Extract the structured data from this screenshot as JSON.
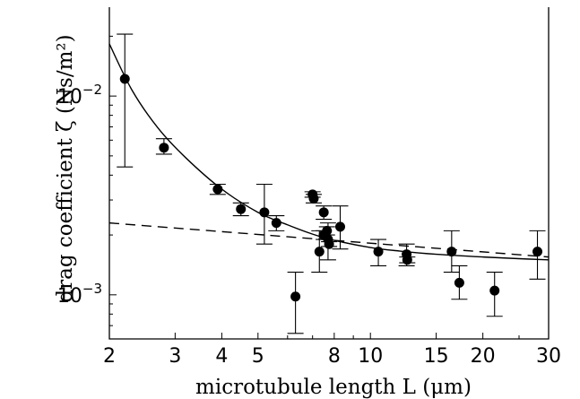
{
  "chart_data": {
    "type": "scatter",
    "x_scale": "log",
    "y_scale": "log",
    "xlabel": "microtubule length L (μm)",
    "ylabel": "drag coefficient ζ (Ns/m²)",
    "xlim": [
      2,
      30
    ],
    "ylim": [
      0.0006,
      0.028
    ],
    "x_ticks": [
      2,
      3,
      4,
      5,
      8,
      10,
      15,
      20,
      30
    ],
    "x_tick_labels": [
      "2",
      "3",
      "4",
      "5",
      "8",
      "10",
      "15",
      "20",
      "30"
    ],
    "y_ticks": [
      0.001,
      0.01
    ],
    "y_tick_labels": [
      {
        "base": "10",
        "exp": "−3"
      },
      {
        "base": "10",
        "exp": "−2"
      }
    ],
    "grid": false,
    "points": [
      {
        "x": 2.2,
        "y": 0.0122,
        "lo": 0.0044,
        "hi": 0.0205
      },
      {
        "x": 2.8,
        "y": 0.0055,
        "lo": 0.0051,
        "hi": 0.0061
      },
      {
        "x": 3.9,
        "y": 0.0034,
        "lo": 0.0032,
        "hi": 0.0036
      },
      {
        "x": 4.5,
        "y": 0.0027,
        "lo": 0.0025,
        "hi": 0.0029
      },
      {
        "x": 5.2,
        "y": 0.0026,
        "lo": 0.0018,
        "hi": 0.0036
      },
      {
        "x": 5.6,
        "y": 0.0023,
        "lo": 0.0021,
        "hi": 0.0025
      },
      {
        "x": 6.3,
        "y": 0.00098,
        "lo": 0.00064,
        "hi": 0.0013
      },
      {
        "x": 7.0,
        "y": 0.0032,
        "lo": 0.0031,
        "hi": 0.0033
      },
      {
        "x": 7.05,
        "y": 0.00305,
        "lo": 0.0029,
        "hi": 0.0032
      },
      {
        "x": 7.3,
        "y": 0.00165,
        "lo": 0.0013,
        "hi": 0.0021
      },
      {
        "x": 7.5,
        "y": 0.0026,
        "lo": 0.0024,
        "hi": 0.0028
      },
      {
        "x": 7.5,
        "y": 0.002,
        "lo": 0.0019,
        "hi": 0.0021
      },
      {
        "x": 7.65,
        "y": 0.0021,
        "lo": 0.002,
        "hi": 0.0022
      },
      {
        "x": 7.7,
        "y": 0.0019,
        "lo": 0.0015,
        "hi": 0.0023
      },
      {
        "x": 7.75,
        "y": 0.0018,
        "lo": 0.00175,
        "hi": 0.00185
      },
      {
        "x": 8.3,
        "y": 0.0022,
        "lo": 0.0017,
        "hi": 0.0028
      },
      {
        "x": 10.5,
        "y": 0.00165,
        "lo": 0.0014,
        "hi": 0.0019
      },
      {
        "x": 12.5,
        "y": 0.0016,
        "lo": 0.0014,
        "hi": 0.0018
      },
      {
        "x": 12.55,
        "y": 0.0015,
        "lo": 0.00145,
        "hi": 0.00155
      },
      {
        "x": 16.5,
        "y": 0.00165,
        "lo": 0.0013,
        "hi": 0.0021
      },
      {
        "x": 17.3,
        "y": 0.00115,
        "lo": 0.00095,
        "hi": 0.0014
      },
      {
        "x": 21.5,
        "y": 0.00105,
        "lo": 0.00078,
        "hi": 0.0013
      },
      {
        "x": 28,
        "y": 0.00165,
        "lo": 0.0012,
        "hi": 0.0021
      }
    ],
    "series": [
      {
        "style": "solid",
        "x": [
          2,
          2.3,
          2.7,
          3.2,
          4,
          5,
          6,
          7,
          8,
          10,
          12,
          15,
          20,
          25,
          30
        ],
        "y": [
          0.0183,
          0.0107,
          0.0069,
          0.0049,
          0.0034,
          0.0026,
          0.00225,
          0.00202,
          0.00188,
          0.00173,
          0.00166,
          0.0016,
          0.00155,
          0.00152,
          0.0015
        ]
      },
      {
        "style": "dashed",
        "x": [
          2,
          30
        ],
        "y": [
          0.0023,
          0.00155
        ]
      }
    ]
  }
}
